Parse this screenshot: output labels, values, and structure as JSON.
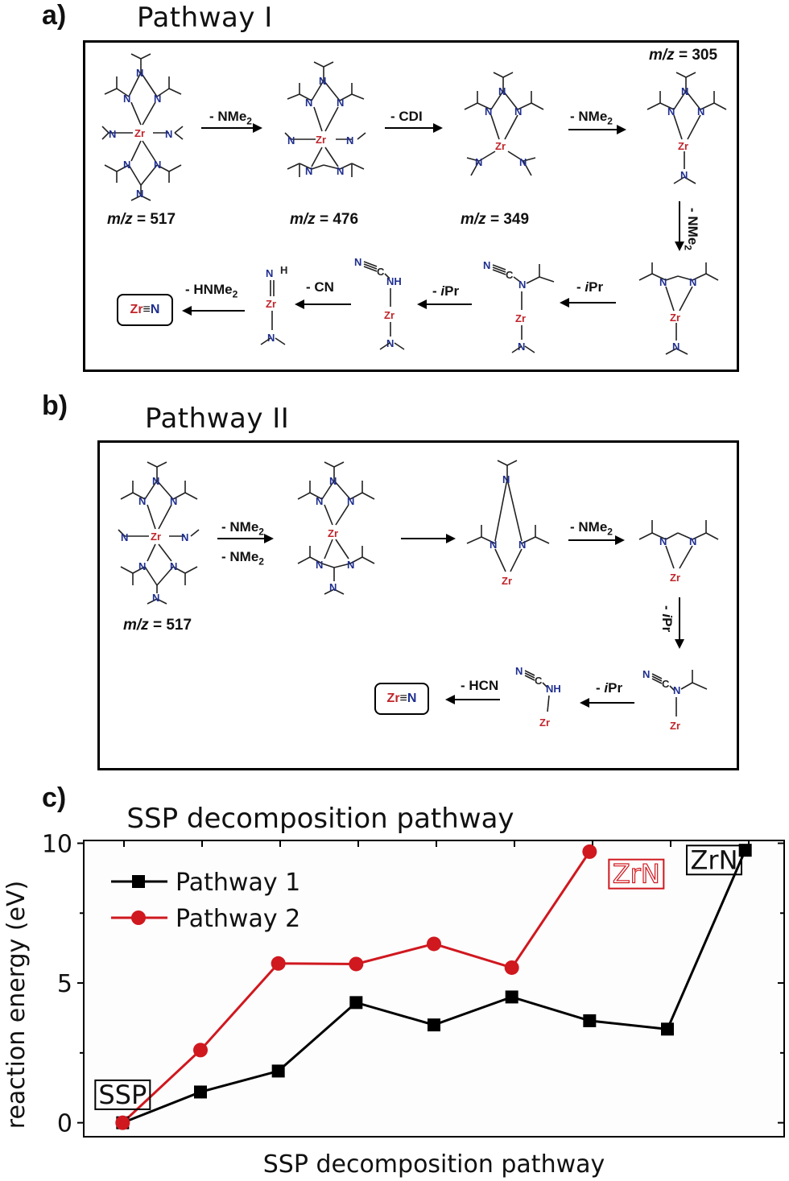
{
  "panel_a": {
    "letter": "a)",
    "title": "Pathway I",
    "mz_labels": [
      "m/z = 517",
      "m/z = 476",
      "m/z = 349",
      "m/z = 305"
    ],
    "steps": [
      "- NMe2",
      "- CDI",
      "- NMe2",
      "- NMe2",
      "- iPr",
      "- iPr",
      "- CN",
      "- HNMe2"
    ],
    "product": {
      "zr": "Zr",
      "bond": "≡",
      "n": "N"
    }
  },
  "panel_b": {
    "letter": "b)",
    "title": "Pathway II",
    "mz_labels": [
      "m/z = 517"
    ],
    "steps": [
      "- NMe2",
      "- NMe2",
      "- NMe2",
      "- iPr",
      "- iPr",
      "- HCN"
    ],
    "product": {
      "zr": "Zr",
      "bond": "≡",
      "n": "N"
    }
  },
  "panel_c": {
    "letter": "c)"
  },
  "chart_data": {
    "type": "line",
    "title": "SSP decomposition pathway",
    "xlabel": "SSP decomposition pathway",
    "ylabel": "reaction energy (eV)",
    "ylim": [
      -0.5,
      10.1
    ],
    "yticks": [
      0,
      5,
      10
    ],
    "xlim": [
      0.5,
      9.5
    ],
    "legend": "top-left",
    "series": [
      {
        "name": "Pathway 1",
        "color": "#000000",
        "marker": "square",
        "x": [
          1,
          2,
          3,
          4,
          5,
          6,
          7,
          8,
          9
        ],
        "y": [
          0.0,
          1.1,
          1.85,
          4.3,
          3.5,
          4.5,
          3.65,
          3.35,
          9.75
        ]
      },
      {
        "name": "Pathway 2",
        "color": "#d0181f",
        "marker": "circle",
        "x": [
          1,
          2,
          3,
          4,
          5,
          6,
          7
        ],
        "y": [
          0.0,
          2.6,
          5.7,
          5.68,
          6.4,
          5.55,
          9.7
        ]
      }
    ],
    "annotations": [
      {
        "text": "SSP",
        "x": 1,
        "y": 1.0,
        "color": "#000000"
      },
      {
        "text": "ZrN",
        "x": 7.6,
        "y": 8.9,
        "color": "#d0181f"
      },
      {
        "text": "ZrN",
        "x": 8.6,
        "y": 9.4,
        "color": "#000000"
      }
    ]
  }
}
